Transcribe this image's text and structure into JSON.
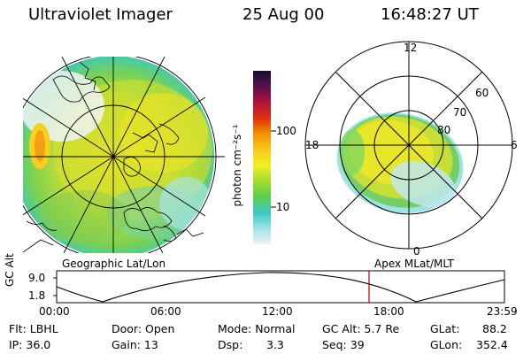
{
  "header": {
    "instrument": "Ultraviolet Imager",
    "date": "25 Aug 00",
    "time": "16:48:27 UT"
  },
  "colorbar": {
    "unit_label": "photon cm⁻²s⁻¹",
    "ticks": [
      "100",
      "10"
    ]
  },
  "polar_plot": {
    "mlt_labels": [
      "12",
      "18",
      "6",
      "0"
    ],
    "lat_labels": [
      "60",
      "70",
      "80"
    ]
  },
  "map_labels": {
    "left": "Geographic Lat/Lon",
    "right": "Apex MLat/MLT"
  },
  "altitude_plot": {
    "y_label": "GC Alt",
    "y_ticks": [
      "9.0",
      "1.8"
    ],
    "x_ticks": [
      "00:00",
      "06:00",
      "12:00",
      "18:00",
      "23:59"
    ]
  },
  "info": {
    "flt": "Flt: LBHL",
    "ip": "IP: 36.0",
    "door": "Door: Open",
    "gain": "Gain: 13",
    "mode": "Mode: Normal",
    "dsp_label": "Dsp:",
    "dsp_value": "3.3",
    "gc_alt": "GC Alt: 5.7 Re",
    "seq": "Seq: 39",
    "glat_label": "GLat:",
    "glat_value": "88.2",
    "glon_label": "GLon:",
    "glon_value": "352.4"
  },
  "colors": {
    "colorbar_stops": [
      "#f2f2f2",
      "#9fe3e6",
      "#3cc8c6",
      "#5ccf4e",
      "#a6dc2e",
      "#f0f024",
      "#f8c81c",
      "#f29200",
      "#e03010",
      "#b0123a",
      "#5a1050",
      "#14102c"
    ],
    "current_time_marker": "#b00000"
  }
}
